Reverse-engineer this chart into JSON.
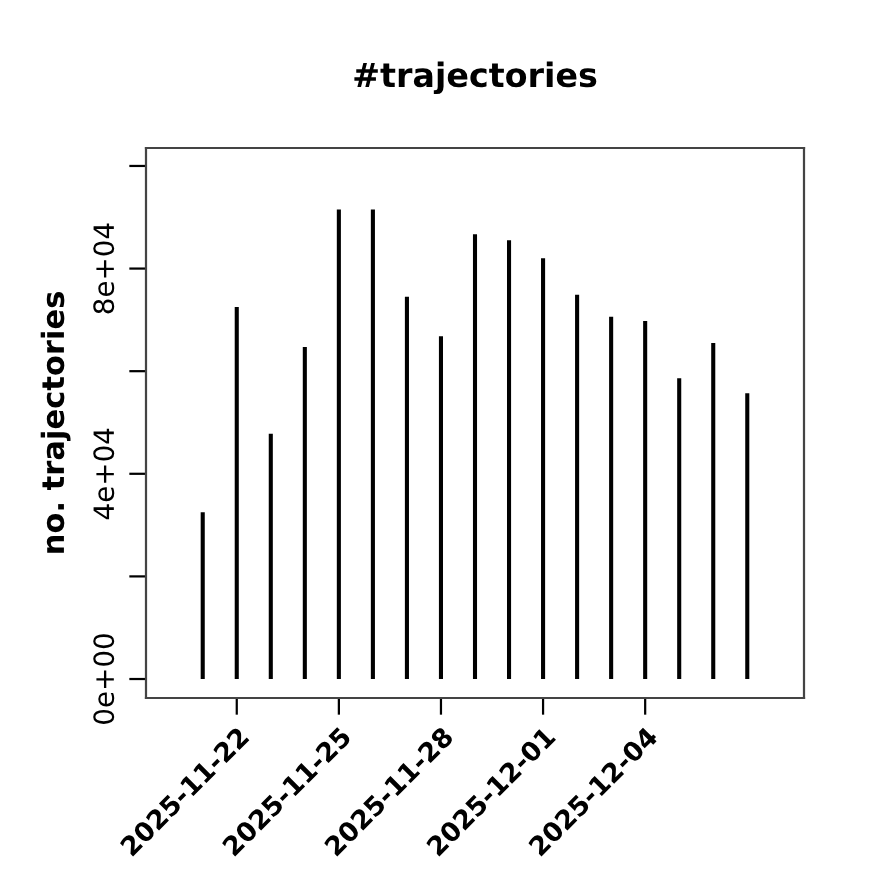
{
  "chart_data": {
    "type": "bar",
    "title": "#trajectories",
    "ylabel": "no. trajectories",
    "x": [
      "2025-11-21",
      "2025-11-22",
      "2025-11-23",
      "2025-11-24",
      "2025-11-25",
      "2025-11-26",
      "2025-11-27",
      "2025-11-28",
      "2025-11-29",
      "2025-11-30",
      "2025-12-01",
      "2025-12-02",
      "2025-12-03",
      "2025-12-04",
      "2025-12-05",
      "2025-12-06",
      "2025-12-07"
    ],
    "values": [
      32500,
      72500,
      47800,
      64700,
      91500,
      91500,
      74500,
      66800,
      86700,
      85500,
      82000,
      74900,
      70600,
      69800,
      58600,
      65500,
      55700
    ],
    "color": "#000000",
    "xlim": [
      "2025-11-19T08:00",
      "2025-12-08T16:00"
    ],
    "xticks": [
      "2025-11-22",
      "2025-11-25",
      "2025-11-28",
      "2025-12-01",
      "2025-12-04"
    ],
    "ylim": [
      -3700,
      103500
    ],
    "yticks": [
      {
        "value": 0,
        "label": "0e+00"
      },
      {
        "value": 20000,
        "label": null
      },
      {
        "value": 40000,
        "label": "4e+04"
      },
      {
        "value": 60000,
        "label": null
      },
      {
        "value": 80000,
        "label": "8e+04"
      },
      {
        "value": 100000,
        "label": null
      }
    ],
    "grid": false
  }
}
